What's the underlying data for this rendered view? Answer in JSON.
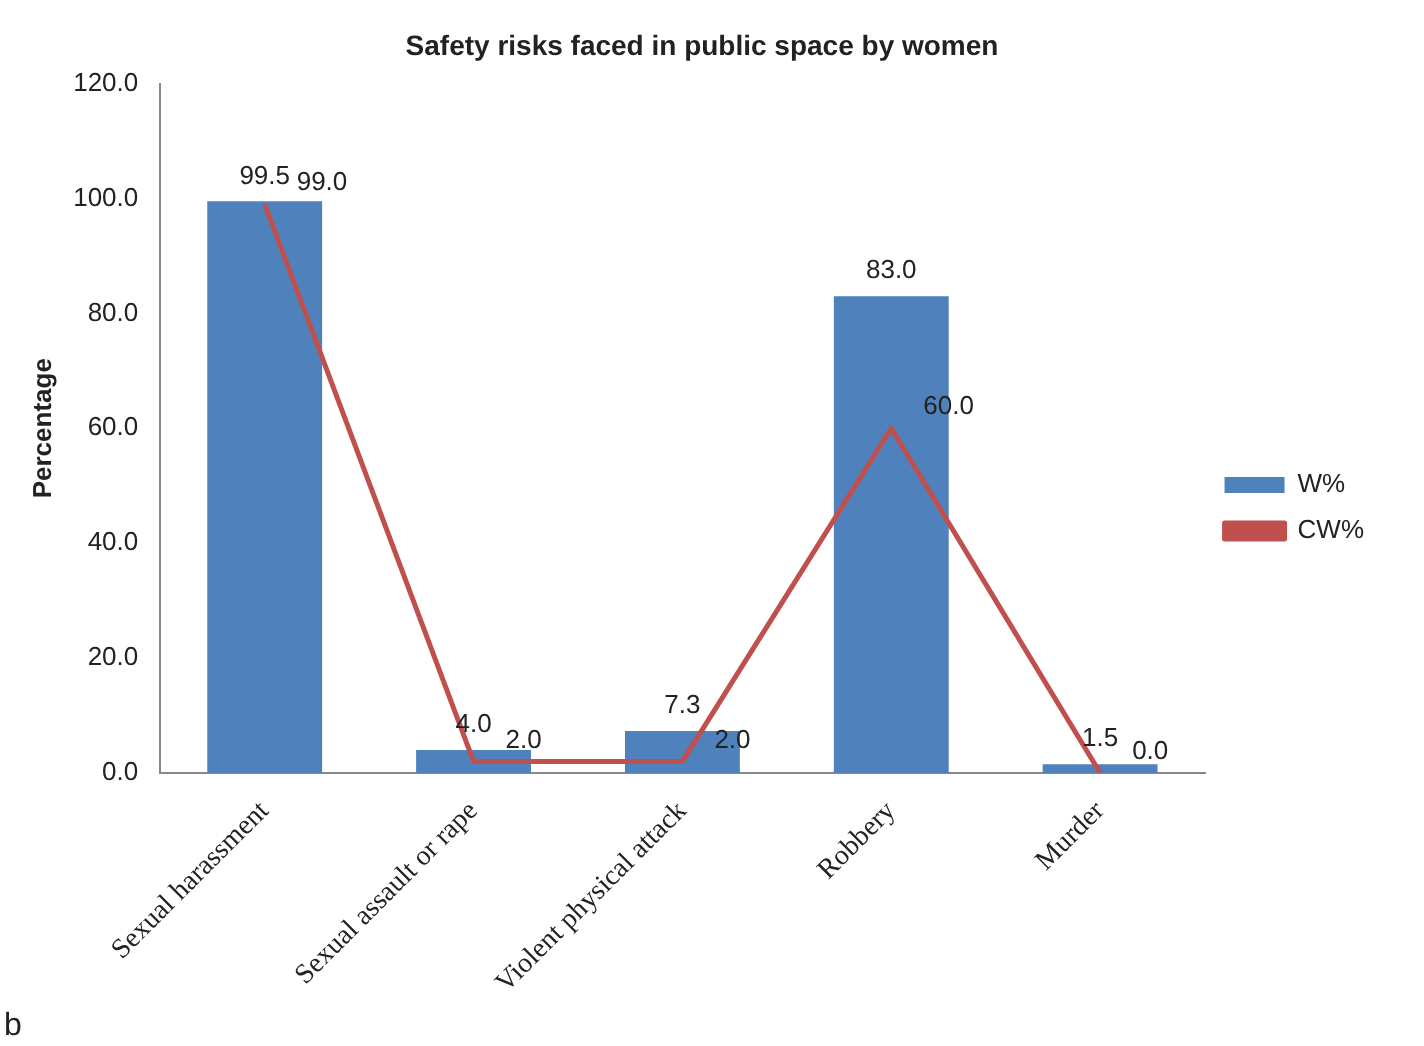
{
  "chart_data": {
    "type": "bar",
    "title": "Safety risks faced in public space by women",
    "ylabel": "Percentage",
    "categories": [
      "Sexual harassment",
      "Sexual assault or rape",
      "Violent physical attack",
      "Robbery",
      "Murder"
    ],
    "series": [
      {
        "name": "W%",
        "color": "#4f81bd",
        "values": [
          99.5,
          4.0,
          7.3,
          83.0,
          1.5
        ],
        "value_labels": [
          "99.5",
          "4.0",
          "7.3",
          "83.0",
          "1.5"
        ]
      },
      {
        "name": "CW%",
        "type": "line",
        "color": "#c0504d",
        "values": [
          99.0,
          2.0,
          2.0,
          60.0,
          0.0
        ],
        "value_labels": [
          "99.0",
          "2.0",
          "2.0",
          "60.0",
          "0.0"
        ]
      }
    ],
    "ylim": [
      0,
      120
    ],
    "yticks": [
      {
        "value": 0,
        "label": "0.0"
      },
      {
        "value": 20,
        "label": "20.0"
      },
      {
        "value": 40,
        "label": "40.0"
      },
      {
        "value": 60,
        "label": "60.0"
      },
      {
        "value": 80,
        "label": "80.0"
      },
      {
        "value": 100,
        "label": "100.0"
      },
      {
        "value": 120,
        "label": "120.0"
      }
    ],
    "grid": false,
    "legend": "right",
    "marker": "none",
    "line_style": "solid",
    "annotations": [
      "b"
    ]
  }
}
